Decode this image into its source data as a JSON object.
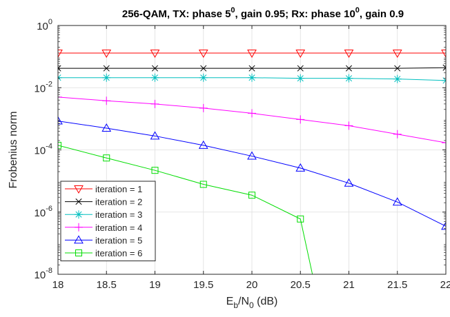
{
  "chart_data": {
    "type": "line",
    "title": {
      "parts": [
        {
          "text": "256-QAM,  TX: phase 5",
          "sup": false
        },
        {
          "text": "0",
          "sup": true
        },
        {
          "text": ", gain 0.95;  Rx: phase 10",
          "sup": false
        },
        {
          "text": "0",
          "sup": true
        },
        {
          "text": ", gain 0.9",
          "sup": false
        }
      ]
    },
    "xlabel": {
      "parts": [
        {
          "text": "E",
          "sub": false
        },
        {
          "text": "b",
          "sub": true
        },
        {
          "text": "/N",
          "sub": false
        },
        {
          "text": "0",
          "sub": true
        },
        {
          "text": " (dB)",
          "sub": false
        }
      ]
    },
    "ylabel": "Frobenius norm",
    "xlim": [
      18,
      22
    ],
    "ylim": [
      1e-08,
      1
    ],
    "yscale": "log",
    "grid": true,
    "legend_position": "bottom-left",
    "x_ticks": [
      "18",
      "18.5",
      "19",
      "19.5",
      "20",
      "20.5",
      "21",
      "21.5",
      "22"
    ],
    "x_tick_values": [
      18,
      18.5,
      19,
      19.5,
      20,
      20.5,
      21,
      21.5,
      22
    ],
    "y_ticks": [
      {
        "exp": -8,
        "base": "10",
        "power": "-8"
      },
      {
        "exp": -6,
        "base": "10",
        "power": "-6"
      },
      {
        "exp": -4,
        "base": "10",
        "power": "-4"
      },
      {
        "exp": -2,
        "base": "10",
        "power": "-2"
      },
      {
        "exp": 0,
        "base": "10",
        "power": "0"
      }
    ],
    "x": [
      18,
      18.5,
      19,
      19.5,
      20,
      20.5,
      21,
      21.5,
      22
    ],
    "series": [
      {
        "name": "iteration = 1",
        "color": "#ff0000",
        "marker": "triangle-down",
        "values": [
          0.13,
          0.13,
          0.13,
          0.13,
          0.13,
          0.13,
          0.13,
          0.13,
          0.13
        ]
      },
      {
        "name": "iteration = 2",
        "color": "#000000",
        "marker": "x",
        "values": [
          0.042,
          0.042,
          0.042,
          0.042,
          0.042,
          0.042,
          0.042,
          0.042,
          0.044
        ]
      },
      {
        "name": "iteration = 3",
        "color": "#00bfbf",
        "marker": "asterisk",
        "values": [
          0.021,
          0.021,
          0.021,
          0.021,
          0.021,
          0.02,
          0.02,
          0.019,
          0.017
        ]
      },
      {
        "name": "iteration = 4",
        "color": "#ff00ff",
        "marker": "plus",
        "values": [
          0.005,
          0.0038,
          0.003,
          0.0022,
          0.0015,
          0.00095,
          0.0006,
          0.00032,
          0.00017
        ]
      },
      {
        "name": "iteration = 5",
        "color": "#0000ff",
        "marker": "triangle-up",
        "values": [
          0.00085,
          0.0005,
          0.00028,
          0.00014,
          6.3e-05,
          2.6e-05,
          8.5e-06,
          2.1e-06,
          3.5e-07
        ]
      },
      {
        "name": "iteration = 6",
        "color": "#00dd00",
        "marker": "square",
        "values": [
          0.00014,
          5.5e-05,
          2.2e-05,
          7.8e-06,
          3.5e-06,
          6e-07,
          null,
          null,
          null
        ],
        "tail": {
          "x": 20.63,
          "y": 1e-08
        }
      }
    ]
  }
}
